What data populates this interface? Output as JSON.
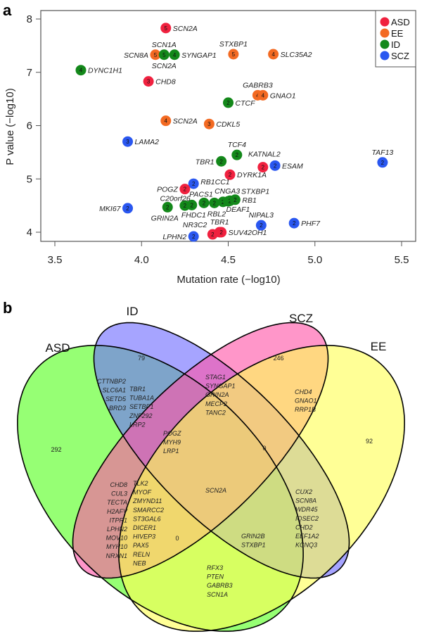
{
  "panel_a_letter": "a",
  "panel_b_letter": "b",
  "chart_data": [
    {
      "type": "scatter",
      "title": "",
      "xlabel": "Mutation rate (−log10)",
      "ylabel": "P value (−log10)",
      "xlim": [
        3.4,
        5.59
      ],
      "ylim": [
        3.85,
        8.15
      ],
      "xticks": [
        "3.5",
        "4.0",
        "4.5",
        "5.0",
        "5.5"
      ],
      "xtick_values": [
        3.5,
        4.0,
        4.5,
        5.0,
        5.5
      ],
      "yticks": [
        "4",
        "5",
        "6",
        "7",
        "8"
      ],
      "ytick_values": [
        4,
        5,
        6,
        7,
        8
      ],
      "grid": false,
      "legend_placement": "top-right",
      "legend": [
        {
          "name": "ASD",
          "color": "#f0213f"
        },
        {
          "name": "EE",
          "color": "#f36a22"
        },
        {
          "name": "ID",
          "color": "#13881a"
        },
        {
          "name": "SCZ",
          "color": "#2a57f0"
        }
      ],
      "points": [
        {
          "group": "ID",
          "x": 3.65,
          "y": 7.04,
          "n": "4",
          "labels": [
            {
              "text": "DYNC1H1",
              "pos": "right"
            }
          ]
        },
        {
          "group": "ASD",
          "x": 4.14,
          "y": 7.83,
          "n": "5",
          "labels": [
            {
              "text": "SCN2A",
              "pos": "right"
            }
          ]
        },
        {
          "group": "EE",
          "x": 4.08,
          "y": 7.33,
          "n": "5",
          "labels": [
            {
              "text": "SCN8A",
              "pos": "left"
            }
          ]
        },
        {
          "group": "ID",
          "x": 4.13,
          "y": 7.33,
          "n": "5",
          "labels": [
            {
              "text": "SCN1A",
              "pos": "above"
            },
            {
              "text": "SCN2A",
              "pos": "below"
            }
          ]
        },
        {
          "group": "ID",
          "x": 4.19,
          "y": 7.33,
          "n": "4",
          "labels": [
            {
              "text": "SYNGAP1",
              "pos": "right"
            }
          ]
        },
        {
          "group": "EE",
          "x": 4.53,
          "y": 7.34,
          "n": "5",
          "labels": [
            {
              "text": "STXBP1",
              "pos": "above"
            }
          ]
        },
        {
          "group": "EE",
          "x": 4.76,
          "y": 7.34,
          "n": "4",
          "labels": [
            {
              "text": "SLC35A2",
              "pos": "right"
            }
          ]
        },
        {
          "group": "ASD",
          "x": 4.04,
          "y": 6.83,
          "n": "3",
          "labels": [
            {
              "text": "CHD8",
              "pos": "right"
            }
          ]
        },
        {
          "group": "EE",
          "x": 4.67,
          "y": 6.57,
          "n": "4",
          "labels": [
            {
              "text": "GABRB3",
              "pos": "above"
            }
          ]
        },
        {
          "group": "EE",
          "x": 4.7,
          "y": 6.57,
          "n": "4",
          "labels": [
            {
              "text": "GNAO1",
              "pos": "right"
            }
          ]
        },
        {
          "group": "ID",
          "x": 4.5,
          "y": 6.43,
          "n": "2",
          "labels": [
            {
              "text": "CTCF",
              "pos": "right"
            }
          ]
        },
        {
          "group": "EE",
          "x": 4.14,
          "y": 6.09,
          "n": "4",
          "labels": [
            {
              "text": "SCN2A",
              "pos": "right"
            }
          ]
        },
        {
          "group": "EE",
          "x": 4.39,
          "y": 6.03,
          "n": "3",
          "labels": [
            {
              "text": "CDKL5",
              "pos": "right"
            }
          ]
        },
        {
          "group": "SCZ",
          "x": 3.92,
          "y": 5.7,
          "n": "3",
          "labels": [
            {
              "text": "LAMA2",
              "pos": "right"
            }
          ]
        },
        {
          "group": "ID",
          "x": 4.55,
          "y": 5.45,
          "n": "2",
          "labels": [
            {
              "text": "TCF4",
              "pos": "above"
            }
          ]
        },
        {
          "group": "ID",
          "x": 4.46,
          "y": 5.33,
          "n": "2",
          "labels": [
            {
              "text": "TBR1",
              "pos": "left"
            }
          ]
        },
        {
          "group": "ASD",
          "x": 4.7,
          "y": 5.22,
          "n": "2",
          "labels": [
            {
              "text": "KATNAL2",
              "pos": "above-right"
            }
          ]
        },
        {
          "group": "SCZ",
          "x": 4.77,
          "y": 5.25,
          "n": "2",
          "labels": [
            {
              "text": "ESAM",
              "pos": "right"
            }
          ]
        },
        {
          "group": "SCZ",
          "x": 5.39,
          "y": 5.31,
          "n": "2",
          "labels": [
            {
              "text": "TAF13",
              "pos": "above"
            }
          ]
        },
        {
          "group": "ASD",
          "x": 4.51,
          "y": 5.08,
          "n": "2",
          "labels": [
            {
              "text": "DYRK1A",
              "pos": "right"
            }
          ]
        },
        {
          "group": "SCZ",
          "x": 4.3,
          "y": 4.91,
          "n": "2",
          "labels": [
            {
              "text": "RB1CC1",
              "pos": "right"
            }
          ]
        },
        {
          "group": "ASD",
          "x": 4.25,
          "y": 4.81,
          "n": "2",
          "labels": [
            {
              "text": "POGZ",
              "pos": "left"
            }
          ]
        },
        {
          "group": "SCZ",
          "x": 3.92,
          "y": 4.45,
          "n": "2",
          "labels": [
            {
              "text": "MKI67",
              "pos": "left"
            }
          ]
        },
        {
          "group": "ID",
          "x": 4.15,
          "y": 4.47,
          "n": "2",
          "labels": [
            {
              "text": "GRIN2A",
              "pos": "below"
            }
          ]
        },
        {
          "group": "ID",
          "x": 4.25,
          "y": 4.5,
          "n": "2",
          "labels": [
            {
              "text": "FHDC1",
              "pos": "below"
            }
          ]
        },
        {
          "group": "ID",
          "x": 4.29,
          "y": 4.51,
          "n": "2",
          "labels": [
            {
              "text": "C20orf26",
              "pos": "above-left"
            }
          ]
        },
        {
          "group": "ID",
          "x": 4.36,
          "y": 4.55,
          "n": "2",
          "labels": [
            {
              "text": "PACS1",
              "pos": "above"
            }
          ]
        },
        {
          "group": "ID",
          "x": 4.42,
          "y": 4.55,
          "n": "2",
          "labels": [
            {
              "text": "RBL2",
              "pos": "below"
            }
          ]
        },
        {
          "group": "ID",
          "x": 4.47,
          "y": 4.57,
          "n": "2",
          "labels": [
            {
              "text": "CNGA3",
              "pos": "above"
            }
          ]
        },
        {
          "group": "ID",
          "x": 4.5,
          "y": 4.58,
          "n": "2",
          "labels": [
            {
              "text": "DEAF1",
              "pos": "below-right"
            }
          ]
        },
        {
          "group": "ID",
          "x": 4.51,
          "y": 4.59,
          "n": "2",
          "labels": [
            {
              "text": "STXBP1",
              "pos": "above-right"
            }
          ]
        },
        {
          "group": "ID",
          "x": 4.54,
          "y": 4.61,
          "n": "2",
          "labels": [
            {
              "text": "RB1",
              "pos": "right"
            }
          ]
        },
        {
          "group": "SCZ",
          "x": 4.69,
          "y": 4.13,
          "n": "2",
          "labels": [
            {
              "text": "NIPAL3",
              "pos": "above"
            }
          ]
        },
        {
          "group": "SCZ",
          "x": 4.88,
          "y": 4.17,
          "n": "2",
          "labels": [
            {
              "text": "PHF7",
              "pos": "right"
            }
          ]
        },
        {
          "group": "SCZ",
          "x": 4.3,
          "y": 3.92,
          "n": "2",
          "labels": [
            {
              "text": "LPHN2",
              "pos": "left"
            }
          ]
        },
        {
          "group": "ASD",
          "x": 4.41,
          "y": 3.96,
          "n": "2",
          "labels": [
            {
              "text": "NR3C2",
              "pos": "above-left"
            }
          ]
        },
        {
          "group": "ASD",
          "x": 4.45,
          "y": 4.0,
          "n": "2",
          "labels": [
            {
              "text": "TBR1",
              "pos": "above"
            }
          ]
        },
        {
          "group": "ASD",
          "x": 4.46,
          "y": 4.0,
          "n": "2",
          "labels": [
            {
              "text": "SUV42OH1",
              "pos": "right"
            }
          ]
        }
      ]
    },
    {
      "type": "venn",
      "sets": [
        {
          "name": "ASD",
          "color": "#55ff1e"
        },
        {
          "name": "ID",
          "color": "#6f6cff"
        },
        {
          "name": "SCZ",
          "color": "#ff55a8"
        },
        {
          "name": "EE",
          "color": "#ffff55"
        }
      ],
      "regions": [
        {
          "id": "ASD",
          "count": "292"
        },
        {
          "id": "ID",
          "count": "79"
        },
        {
          "id": "SCZ",
          "count": "246"
        },
        {
          "id": "EE",
          "count": "92"
        },
        {
          "id": "ASD-ID-a",
          "genes": [
            "CTTNBP2",
            "SLC6A1",
            "SETD5",
            "BRD3"
          ]
        },
        {
          "id": "ASD-ID-b",
          "genes": [
            "TBR1",
            "TUBA1A",
            "SETBP1",
            "ZNF292",
            "LRP2"
          ]
        },
        {
          "id": "ID-SCZ",
          "genes": [
            "STAG1",
            "SYNGAP1",
            "GRIN2A",
            "MECP2",
            "TANC2"
          ]
        },
        {
          "id": "SCZ-EE",
          "genes": [
            "CHD4",
            "GNAO1",
            "RRP1B"
          ]
        },
        {
          "id": "ASD-ID-SCZ",
          "genes": [
            "POGZ",
            "MYH9",
            "LRP1"
          ]
        },
        {
          "id": "ID-SCZ-EE",
          "count": "0"
        },
        {
          "id": "ASD-SCZ-a",
          "genes": [
            "CHD8",
            "CUL3",
            "TECTA",
            "H2AFV",
            "ITPR1",
            "LPHN2",
            "MOV10",
            "MYH10",
            "NRXN1"
          ]
        },
        {
          "id": "ASD-SCZ-b",
          "genes": [
            "TLK2",
            "MYOF",
            "ZMYND11",
            "SMARCC2",
            "ST3GAL6",
            "DICER1",
            "HIVEP3",
            "PAX5",
            "RELN",
            "NEB"
          ]
        },
        {
          "id": "ALL",
          "genes": [
            "SCN2A"
          ]
        },
        {
          "id": "ASD-SCZ-EE",
          "count": "0"
        },
        {
          "id": "ASD-ID-EE",
          "genes": [
            "GRIN2B",
            "STXBP1"
          ]
        },
        {
          "id": "ID-EE",
          "genes": [
            "CUX2",
            "SCN8A",
            "WDR45",
            "IQSEC2",
            "CHD2",
            "EEF1A2",
            "KCNQ3"
          ]
        },
        {
          "id": "ASD-EE",
          "genes": [
            "RFX3",
            "PTEN",
            "GABRB3",
            "SCN1A"
          ]
        }
      ]
    }
  ]
}
